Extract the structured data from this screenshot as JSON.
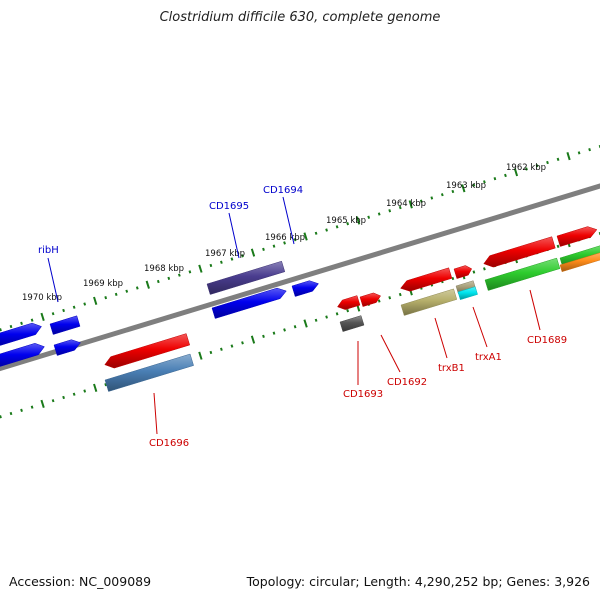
{
  "title": "Clostridium difficile 630, complete genome",
  "accession": "Accession: NC_009089",
  "summary": "Topology: circular; Length: 4,290,252 bp; Genes: 3,926",
  "colors": {
    "backbone": "#7f7f7f",
    "ticks": "#1a7a1a",
    "gene_label_blue": "#0000cc",
    "gene_label_red": "#cc0000"
  },
  "scale_labels": [
    {
      "text": "1970 kbp"
    },
    {
      "text": "1969 kbp"
    },
    {
      "text": "1968 kbp"
    },
    {
      "text": "1967 kbp"
    },
    {
      "text": "1966 kbp"
    },
    {
      "text": "1965 kbp"
    },
    {
      "text": "1964 kbp"
    },
    {
      "text": "1963 kbp"
    },
    {
      "text": "1962 kbp"
    }
  ],
  "gene_labels": [
    {
      "text": "ribH",
      "color": "blue"
    },
    {
      "text": "CD1695",
      "color": "blue"
    },
    {
      "text": "CD1694",
      "color": "blue"
    },
    {
      "text": "CD1696",
      "color": "red"
    },
    {
      "text": "CD1693",
      "color": "red"
    },
    {
      "text": "CD1692",
      "color": "red"
    },
    {
      "text": "trxB1",
      "color": "red"
    },
    {
      "text": "trxA1",
      "color": "red"
    },
    {
      "text": "CD1689",
      "color": "red"
    }
  ],
  "features": [
    {
      "name": "gene-block",
      "color": "#0000ee"
    },
    {
      "name": "gene-block",
      "color": "#0000ee"
    },
    {
      "name": "ribH-gene",
      "color": "#0000ee"
    },
    {
      "name": "ribH-gene-2",
      "color": "#0000ee"
    },
    {
      "name": "CD1695-gene",
      "color": "#4a3d8f"
    },
    {
      "name": "CD1694-gene",
      "color": "#0000ee"
    },
    {
      "name": "CD1694-gene-2",
      "color": "#0000ee"
    },
    {
      "name": "CD1696-gene",
      "color": "#ee0000"
    },
    {
      "name": "CD1696-gene-2",
      "color": "#4a7fb5"
    },
    {
      "name": "CD1693-gene",
      "color": "#ee0000"
    },
    {
      "name": "CD1693-gene-2",
      "color": "#555555"
    },
    {
      "name": "CD1692-gene",
      "color": "#ee0000"
    },
    {
      "name": "trxB1-gene",
      "color": "#ee0000"
    },
    {
      "name": "trxB1-gene-2",
      "color": "#b5ae6a"
    },
    {
      "name": "trxA1-gene",
      "color": "#ee0000"
    },
    {
      "name": "trxA1-gene-2",
      "color": "#a8a07a"
    },
    {
      "name": "trxA1-gene-3",
      "color": "#00e5ee"
    },
    {
      "name": "CD1689-gene",
      "color": "#ee0000"
    },
    {
      "name": "CD1689-gene-2",
      "color": "#ee0000"
    },
    {
      "name": "CD1689-gene-3",
      "color": "#2ecc2e"
    },
    {
      "name": "CD1689-gene-4",
      "color": "#2ecc2e"
    },
    {
      "name": "CD1689-gene-5",
      "color": "#ff8c1a"
    }
  ]
}
